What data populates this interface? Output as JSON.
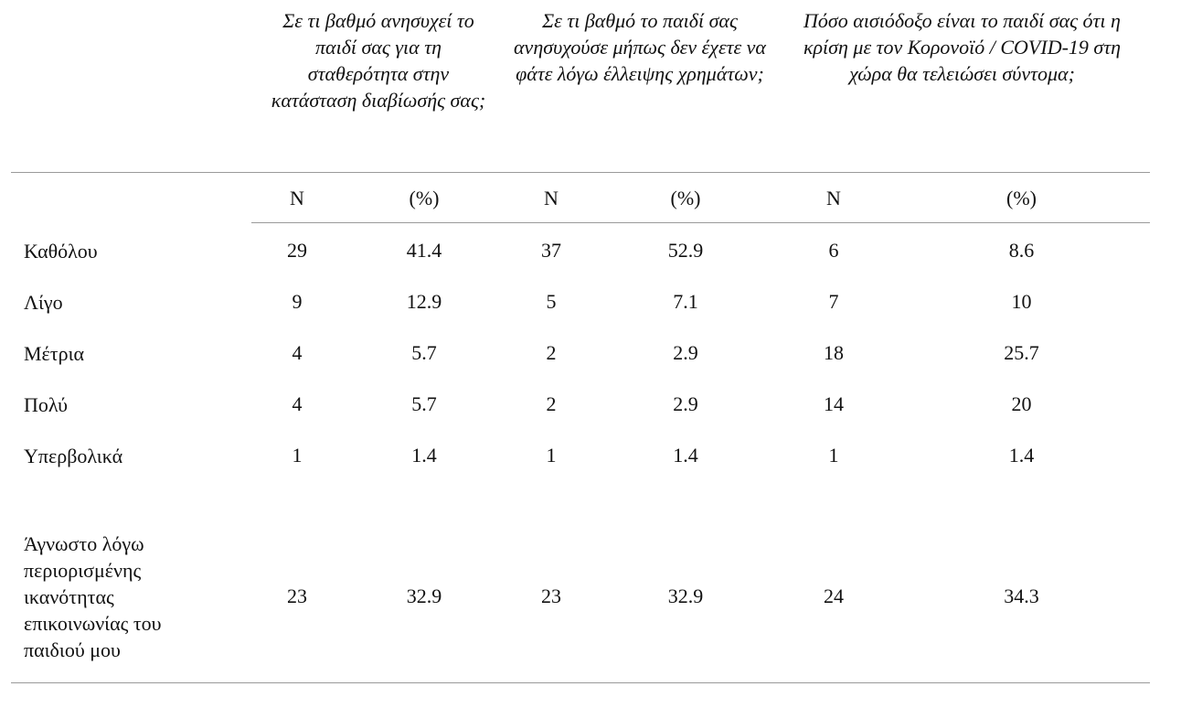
{
  "header": {
    "questions": [
      "Σε τι βαθμό ανησυχεί το παιδί σας για τη σταθερότητα στην κατάσταση διαβίωσής σας;",
      "Σε τι βαθμό το παιδί σας ανησυχούσε μήπως δεν έχετε να φάτε λόγω έλλειψης χρημάτων;",
      "Πόσο αισιόδοξο είναι το παιδί σας ότι η κρίση με τον Κορονοϊό / COVID-19 στη χώρα θα τελειώσει σύντομα;"
    ],
    "subheaders": [
      "N",
      "(%)",
      "N",
      "(%)",
      "N",
      "(%)"
    ]
  },
  "rows": [
    {
      "label": "Καθόλου",
      "values": [
        "29",
        "41.4",
        "37",
        "52.9",
        "6",
        "8.6"
      ]
    },
    {
      "label": "Λίγο",
      "values": [
        "9",
        "12.9",
        "5",
        "7.1",
        "7",
        "10"
      ]
    },
    {
      "label": "Μέτρια",
      "values": [
        "4",
        "5.7",
        "2",
        "2.9",
        "18",
        "25.7"
      ]
    },
    {
      "label": "Πολύ",
      "values": [
        "4",
        "5.7",
        "2",
        "2.9",
        "14",
        "20"
      ]
    },
    {
      "label": "Υπερβολικά",
      "values": [
        "1",
        "1.4",
        "1",
        "1.4",
        "1",
        "1.4"
      ]
    },
    {
      "label": "Άγνωστο λόγω περιορισμένης ικανότητας επικοινωνίας του παιδιού μου",
      "values": [
        "23",
        "32.9",
        "23",
        "32.9",
        "24",
        "34.3"
      ]
    }
  ]
}
